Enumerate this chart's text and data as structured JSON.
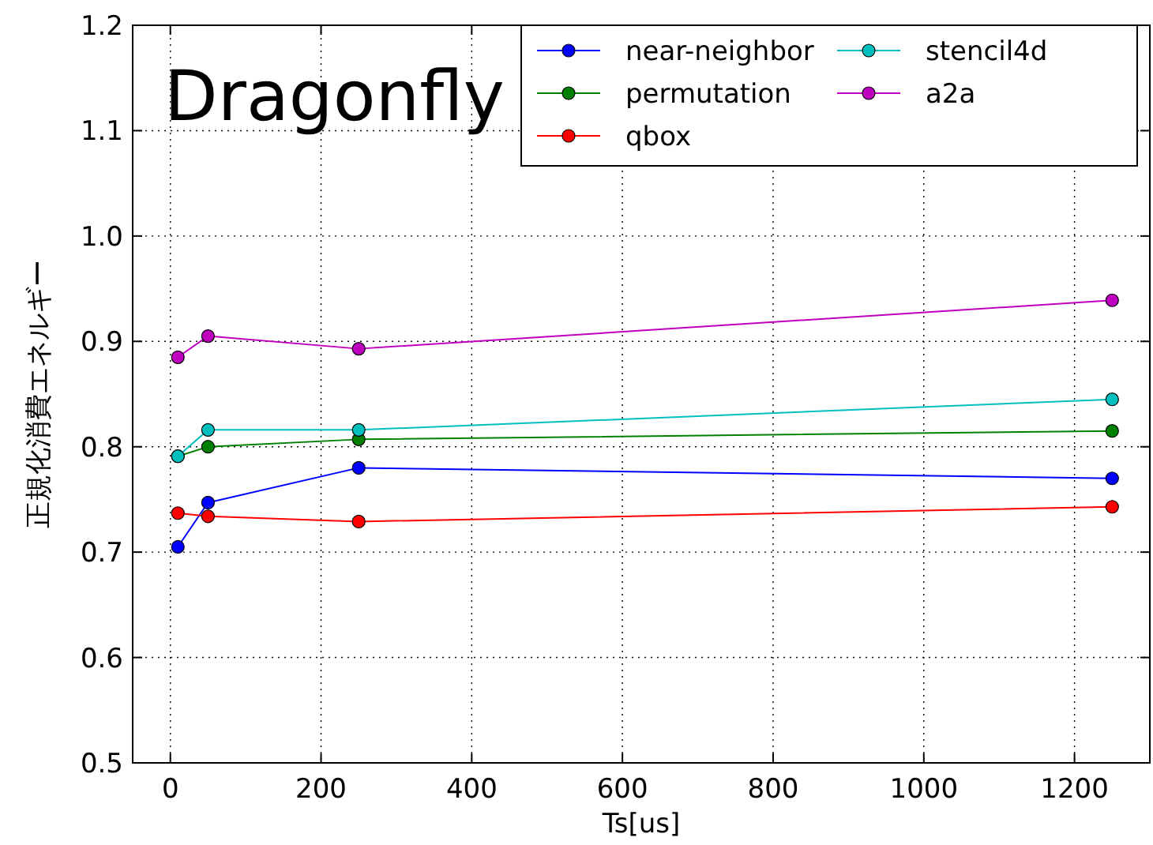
{
  "chart_data": {
    "type": "line",
    "xlabel": "Ts[us]",
    "ylabel": "正規化消費エネルギー",
    "annotations": [
      "Dragonfly"
    ],
    "x": [
      10,
      50,
      250,
      1250
    ],
    "xlim": [
      -50,
      1300
    ],
    "xticks": [
      0,
      200,
      400,
      600,
      800,
      1000,
      1200
    ],
    "ylim": [
      0.5,
      1.2
    ],
    "yticks": [
      0.5,
      0.6,
      0.7,
      0.8,
      0.9,
      {
        "value": 1,
        "label": "1.0"
      },
      1.1,
      1.2
    ],
    "grid": true,
    "legend": "top right",
    "marker": "circle",
    "line_style": "solid",
    "series": [
      {
        "name": "near-neighbor",
        "color": "#0000ff",
        "values": [
          0.705,
          0.747,
          0.78,
          0.77
        ]
      },
      {
        "name": "permutation",
        "color": "#008000",
        "values": [
          0.791,
          0.8,
          0.807,
          0.815
        ]
      },
      {
        "name": "qbox",
        "color": "#ff0000",
        "values": [
          0.737,
          0.734,
          0.729,
          0.743
        ]
      },
      {
        "name": "stencil4d",
        "color": "#00bfbf",
        "values": [
          0.791,
          0.816,
          0.816,
          0.845
        ]
      },
      {
        "name": "a2a",
        "color": "#bf00bf",
        "values": [
          0.885,
          0.905,
          0.893,
          0.939
        ]
      }
    ]
  }
}
